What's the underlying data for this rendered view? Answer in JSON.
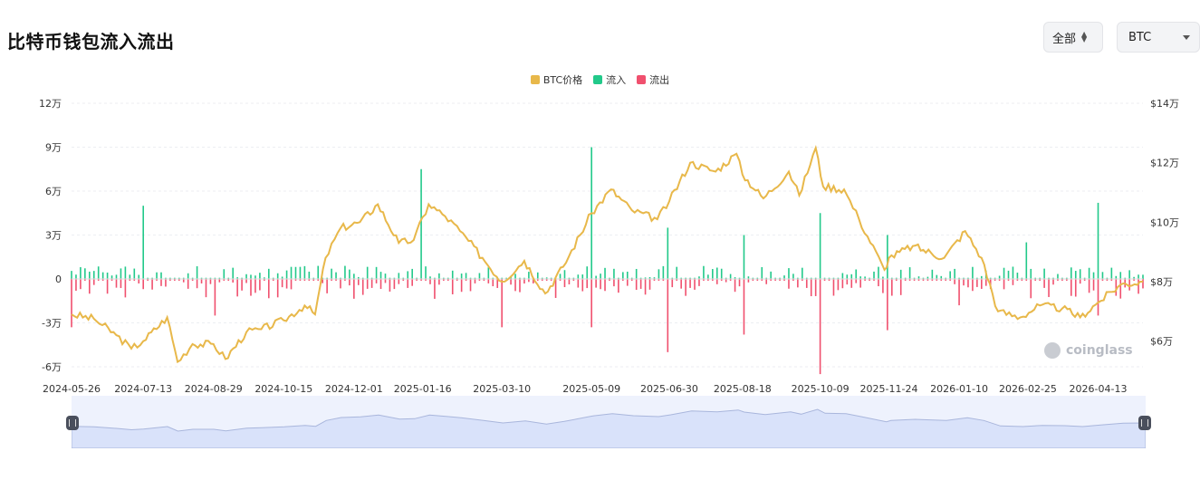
{
  "header": {
    "title": "比特币钱包流入流出"
  },
  "controls": {
    "range": {
      "label": "全部"
    },
    "coin": {
      "label": "BTC"
    }
  },
  "legend": [
    {
      "label": "BTC价格",
      "color": "#e8b84a"
    },
    {
      "label": "流入",
      "color": "#22c98a"
    },
    {
      "label": "流出",
      "color": "#f0506e"
    }
  ],
  "watermark": "coinglass",
  "chart_data": {
    "type": "bar",
    "x_labels": [
      "2024-05-26",
      "2024-07-13",
      "2024-08-29",
      "2024-10-15",
      "2024-12-01",
      "2025-01-16",
      "2025-03-10",
      "2025-05-09",
      "2025-06-30",
      "2025-08-18",
      "2025-10-09",
      "2025-11-24",
      "2026-01-10",
      "2026-02-25",
      "2026-04-13"
    ],
    "x_range": [
      "2024-05-26",
      "2026-05-13"
    ],
    "y_left": {
      "ticks": [
        "12万",
        "9万",
        "6万",
        "3万",
        "0",
        "-3万",
        "-6万"
      ],
      "range": [
        -65000,
        120000
      ]
    },
    "y_right": {
      "ticks": [
        "$14万",
        "$12万",
        "$10万",
        "$8万",
        "$6万"
      ],
      "range": [
        50000,
        140000
      ]
    },
    "grid": true,
    "legend_position": "top-center",
    "series": [
      {
        "name": "BTC价格",
        "type": "line",
        "color": "#e8b84a",
        "points": [
          [
            "2024-05-26",
            69000
          ],
          [
            "2024-06-10",
            67500
          ],
          [
            "2024-06-25",
            62000
          ],
          [
            "2024-07-05",
            57500
          ],
          [
            "2024-07-13",
            60000
          ],
          [
            "2024-07-29",
            68000
          ],
          [
            "2024-08-05",
            53000
          ],
          [
            "2024-08-15",
            59000
          ],
          [
            "2024-08-29",
            59000
          ],
          [
            "2024-09-06",
            54000
          ],
          [
            "2024-09-20",
            63000
          ],
          [
            "2024-09-30",
            64000
          ],
          [
            "2024-10-15",
            67000
          ],
          [
            "2024-10-29",
            72000
          ],
          [
            "2024-11-05",
            69000
          ],
          [
            "2024-11-12",
            88000
          ],
          [
            "2024-11-22",
            98000
          ],
          [
            "2024-12-05",
            100000
          ],
          [
            "2024-12-17",
            106000
          ],
          [
            "2024-12-31",
            93000
          ],
          [
            "2025-01-10",
            94000
          ],
          [
            "2025-01-20",
            106000
          ],
          [
            "2025-01-31",
            102000
          ],
          [
            "2025-02-10",
            97000
          ],
          [
            "2025-02-25",
            88000
          ],
          [
            "2025-03-10",
            80000
          ],
          [
            "2025-03-25",
            87000
          ],
          [
            "2025-04-08",
            76000
          ],
          [
            "2025-04-20",
            85000
          ],
          [
            "2025-05-09",
            103000
          ],
          [
            "2025-05-22",
            111000
          ],
          [
            "2025-06-05",
            104000
          ],
          [
            "2025-06-22",
            101000
          ],
          [
            "2025-06-30",
            107000
          ],
          [
            "2025-07-14",
            120000
          ],
          [
            "2025-07-31",
            117000
          ],
          [
            "2025-08-14",
            123000
          ],
          [
            "2025-08-18",
            116000
          ],
          [
            "2025-09-01",
            108000
          ],
          [
            "2025-09-18",
            117000
          ],
          [
            "2025-09-25",
            109000
          ],
          [
            "2025-10-06",
            125000
          ],
          [
            "2025-10-11",
            112000
          ],
          [
            "2025-10-25",
            111000
          ],
          [
            "2025-11-04",
            101000
          ],
          [
            "2025-11-21",
            84000
          ],
          [
            "2025-11-24",
            88000
          ],
          [
            "2025-12-10",
            92000
          ],
          [
            "2025-12-31",
            88000
          ],
          [
            "2026-01-14",
            97000
          ],
          [
            "2026-01-25",
            88000
          ],
          [
            "2026-02-05",
            70000
          ],
          [
            "2026-02-20",
            68000
          ],
          [
            "2026-03-05",
            72000
          ],
          [
            "2026-03-20",
            71000
          ],
          [
            "2026-04-01",
            68000
          ],
          [
            "2026-04-13",
            73000
          ],
          [
            "2026-04-28",
            79000
          ],
          [
            "2026-05-13",
            80000
          ]
        ]
      },
      {
        "name": "流入",
        "type": "bar",
        "color": "#22c98a",
        "spikes": [
          [
            "2024-07-13",
            50000
          ],
          [
            "2025-01-16",
            75000
          ],
          [
            "2025-05-09",
            90000
          ],
          [
            "2025-06-30",
            35000
          ],
          [
            "2025-08-18",
            30000
          ],
          [
            "2025-10-09",
            45000
          ],
          [
            "2025-11-24",
            30000
          ],
          [
            "2026-02-25",
            25000
          ],
          [
            "2026-04-13",
            52000
          ]
        ],
        "baseline_range": [
          1000,
          9000
        ]
      },
      {
        "name": "流出",
        "type": "bar",
        "color": "#f0506e",
        "spikes": [
          [
            "2024-05-26",
            -33000
          ],
          [
            "2024-08-29",
            -25000
          ],
          [
            "2025-03-10",
            -33000
          ],
          [
            "2025-05-09",
            -33000
          ],
          [
            "2025-06-30",
            -50000
          ],
          [
            "2025-08-18",
            -38000
          ],
          [
            "2025-10-09",
            -65000
          ],
          [
            "2025-11-24",
            -35000
          ],
          [
            "2026-01-10",
            -18000
          ],
          [
            "2026-04-13",
            -25000
          ]
        ],
        "baseline_range": [
          -2000,
          -14000
        ]
      }
    ]
  }
}
